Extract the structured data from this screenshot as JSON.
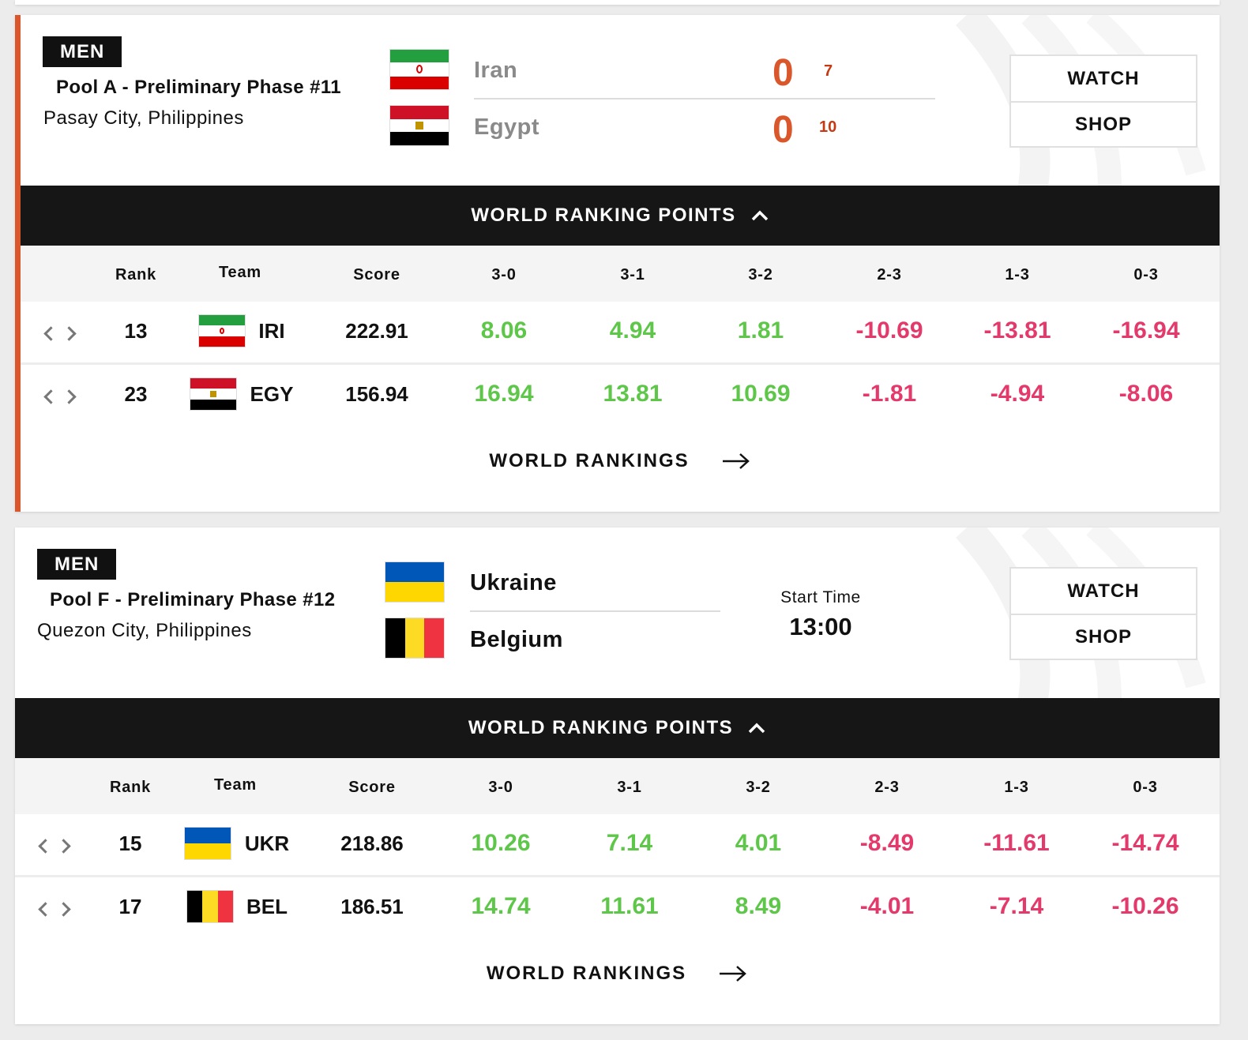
{
  "matches": [
    {
      "gender": "MEN",
      "phase": "Pool A - Preliminary Phase #11",
      "city": "Pasay City, Philippines",
      "status": "live",
      "teams": [
        {
          "name": "Iran",
          "flag": "iran-flag",
          "score": "0",
          "set_points": "7"
        },
        {
          "name": "Egypt",
          "flag": "egypt-flag",
          "score": "0",
          "set_points": "10"
        }
      ],
      "watch_label": "WATCH",
      "shop_label": "SHOP",
      "wrp_label": "WORLD RANKING POINTS",
      "headers": [
        "Rank",
        "Team",
        "Score",
        "3-0",
        "3-1",
        "3-2",
        "2-3",
        "1-3",
        "0-3"
      ],
      "rows": [
        {
          "rank": "13",
          "code": "IRI",
          "score": "222.91",
          "p30": "8.06",
          "p31": "4.94",
          "p32": "1.81",
          "p23": "-10.69",
          "p13": "-13.81",
          "p03": "-16.94"
        },
        {
          "rank": "23",
          "code": "EGY",
          "score": "156.94",
          "p30": "16.94",
          "p31": "13.81",
          "p32": "10.69",
          "p23": "-1.81",
          "p13": "-4.94",
          "p03": "-8.06"
        }
      ],
      "world_rankings_label": "WORLD RANKINGS"
    },
    {
      "gender": "MEN",
      "phase": "Pool F - Preliminary Phase #12",
      "city": "Quezon City, Philippines",
      "status": "upcoming",
      "teams": [
        {
          "name": "Ukraine",
          "flag": "ukraine-flag"
        },
        {
          "name": "Belgium",
          "flag": "belgium-flag"
        }
      ],
      "start_label": "Start Time",
      "start_time": "13:00",
      "watch_label": "WATCH",
      "shop_label": "SHOP",
      "wrp_label": "WORLD RANKING POINTS",
      "headers": [
        "Rank",
        "Team",
        "Score",
        "3-0",
        "3-1",
        "3-2",
        "2-3",
        "1-3",
        "0-3"
      ],
      "rows": [
        {
          "rank": "15",
          "code": "UKR",
          "score": "218.86",
          "p30": "10.26",
          "p31": "7.14",
          "p32": "4.01",
          "p23": "-8.49",
          "p13": "-11.61",
          "p03": "-14.74"
        },
        {
          "rank": "17",
          "code": "BEL",
          "score": "186.51",
          "p30": "14.74",
          "p31": "11.61",
          "p32": "8.49",
          "p23": "-4.01",
          "p13": "-7.14",
          "p03": "-10.26"
        }
      ],
      "world_rankings_label": "WORLD RANKINGS"
    }
  ],
  "colors": {
    "accent": "#d9572b",
    "positive": "#5ec74a",
    "negative": "#e43a6b",
    "dark_bar": "#161616"
  }
}
